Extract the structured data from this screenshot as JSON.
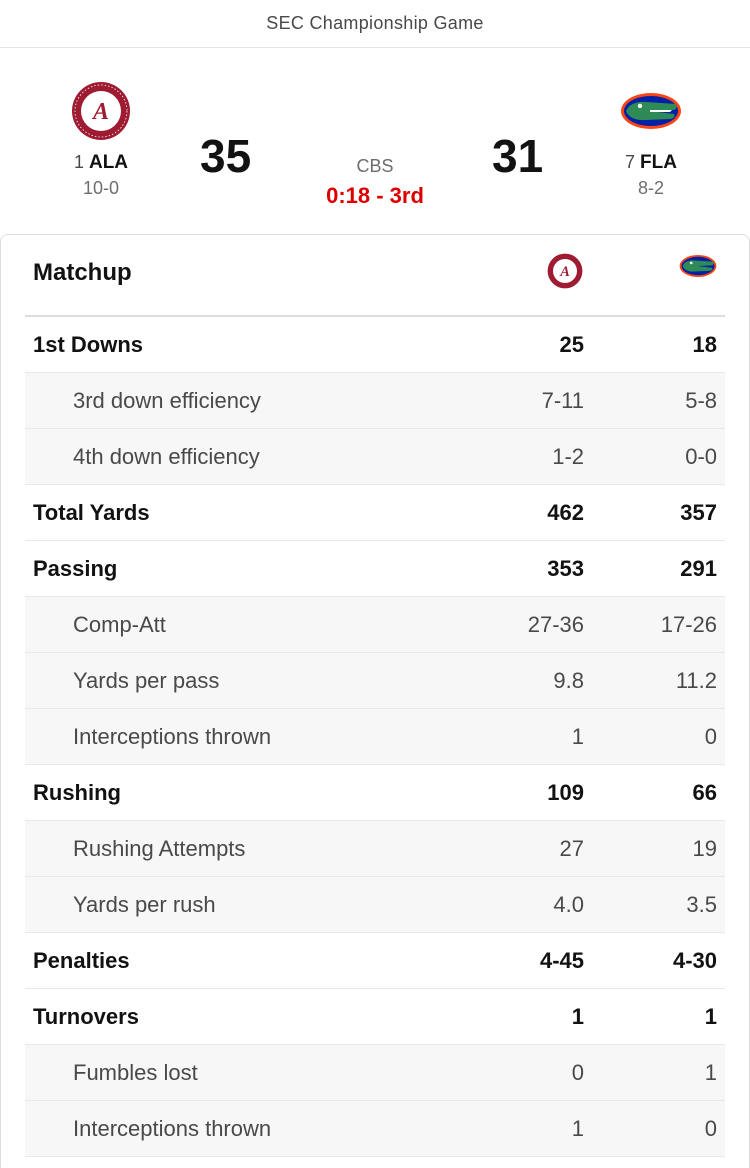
{
  "header": {
    "title": "SEC Championship Game"
  },
  "away": {
    "rank": "1",
    "abbr": "ALA",
    "record": "10-0",
    "score": "35",
    "logo": "alabama-logo"
  },
  "home": {
    "rank": "7",
    "abbr": "FLA",
    "record": "8-2",
    "score": "31",
    "logo": "florida-gator-logo"
  },
  "game": {
    "network": "CBS",
    "clock": "0:18 - 3rd"
  },
  "colors": {
    "clock": "#dd0000",
    "alabama_crimson": "#9e1b32",
    "florida_orange": "#fa4616",
    "florida_blue": "#0021a5",
    "gator_green": "#2e8b57"
  },
  "matchup": {
    "title": "Matchup",
    "rows": [
      {
        "type": "main",
        "label": "1st Downs",
        "away": "25",
        "home": "18"
      },
      {
        "type": "sub",
        "label": "3rd down efficiency",
        "away": "7-11",
        "home": "5-8"
      },
      {
        "type": "sub",
        "label": "4th down efficiency",
        "away": "1-2",
        "home": "0-0"
      },
      {
        "type": "main",
        "label": "Total Yards",
        "away": "462",
        "home": "357"
      },
      {
        "type": "main",
        "label": "Passing",
        "away": "353",
        "home": "291"
      },
      {
        "type": "sub",
        "label": "Comp-Att",
        "away": "27-36",
        "home": "17-26"
      },
      {
        "type": "sub",
        "label": "Yards per pass",
        "away": "9.8",
        "home": "11.2"
      },
      {
        "type": "sub",
        "label": "Interceptions thrown",
        "away": "1",
        "home": "0"
      },
      {
        "type": "main",
        "label": "Rushing",
        "away": "109",
        "home": "66"
      },
      {
        "type": "sub",
        "label": "Rushing Attempts",
        "away": "27",
        "home": "19"
      },
      {
        "type": "sub",
        "label": "Yards per rush",
        "away": "4.0",
        "home": "3.5"
      },
      {
        "type": "main",
        "label": "Penalties",
        "away": "4-45",
        "home": "4-30"
      },
      {
        "type": "main",
        "label": "Turnovers",
        "away": "1",
        "home": "1"
      },
      {
        "type": "sub",
        "label": "Fumbles lost",
        "away": "0",
        "home": "1"
      },
      {
        "type": "sub",
        "label": "Interceptions thrown",
        "away": "1",
        "home": "0"
      }
    ]
  }
}
